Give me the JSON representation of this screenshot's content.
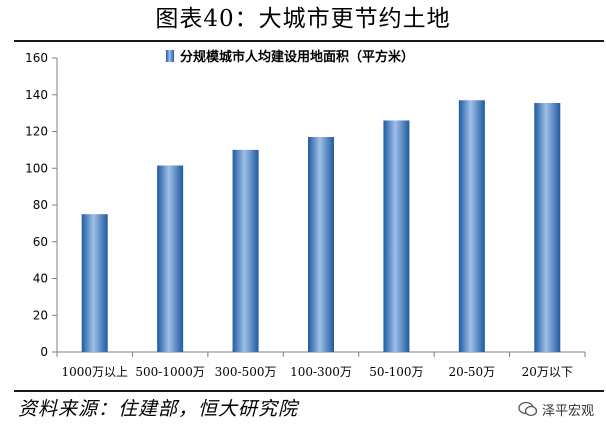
{
  "header": {
    "title": "图表40：大城市更节约土地"
  },
  "footer": {
    "source": "资料来源：住建部，恒大研究院",
    "watermark": "泽平宏观"
  },
  "colors": {
    "bar_light": "#9fc0e8",
    "bar_mid": "#4f86c6",
    "bar_dark": "#1f5aa0",
    "axis": "#808080"
  },
  "chart_data": {
    "type": "bar",
    "title": "",
    "xlabel": "",
    "ylabel": "",
    "legend": {
      "position": "top-center",
      "label": "分规模城市人均建设用地面积（平方米）"
    },
    "categories": [
      "1000万以上",
      "500-1000万",
      "300-500万",
      "100-300万",
      "50-100万",
      "20-50万",
      "20万以下"
    ],
    "series": [
      {
        "name": "分规模城市人均建设用地面积（平方米）",
        "values": [
          75,
          101.5,
          110,
          117,
          126,
          137,
          135.5
        ]
      }
    ],
    "ylim": [
      0,
      160
    ],
    "yticks": [
      0,
      20,
      40,
      60,
      80,
      100,
      120,
      140,
      160
    ],
    "grid": false
  }
}
